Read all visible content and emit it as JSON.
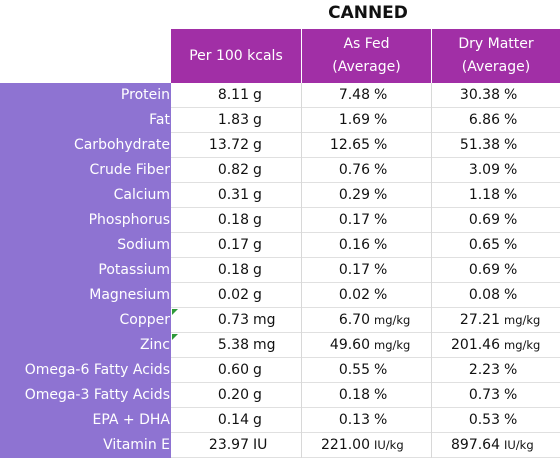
{
  "title": "CANNED",
  "headers": [
    {
      "line1": "Per 100 kcals",
      "line2": ""
    },
    {
      "line1": "As Fed",
      "line2": "(Average)"
    },
    {
      "line1": "Dry Matter",
      "line2": "(Average)"
    }
  ],
  "rows": [
    {
      "label": "Protein",
      "per100": {
        "n": "8.11",
        "u": "g"
      },
      "asfed": {
        "n": "7.48",
        "u": "%"
      },
      "dry": {
        "n": "30.38",
        "u": "%"
      }
    },
    {
      "label": "Fat",
      "per100": {
        "n": "1.83",
        "u": "g"
      },
      "asfed": {
        "n": "1.69",
        "u": "%"
      },
      "dry": {
        "n": "6.86",
        "u": "%"
      }
    },
    {
      "label": "Carbohydrate",
      "per100": {
        "n": "13.72",
        "u": "g"
      },
      "asfed": {
        "n": "12.65",
        "u": "%"
      },
      "dry": {
        "n": "51.38",
        "u": "%"
      }
    },
    {
      "label": "Crude Fiber",
      "per100": {
        "n": "0.82",
        "u": "g"
      },
      "asfed": {
        "n": "0.76",
        "u": "%"
      },
      "dry": {
        "n": "3.09",
        "u": "%"
      }
    },
    {
      "label": "Calcium",
      "per100": {
        "n": "0.31",
        "u": "g"
      },
      "asfed": {
        "n": "0.29",
        "u": "%"
      },
      "dry": {
        "n": "1.18",
        "u": "%"
      }
    },
    {
      "label": "Phosphorus",
      "per100": {
        "n": "0.18",
        "u": "g"
      },
      "asfed": {
        "n": "0.17",
        "u": "%"
      },
      "dry": {
        "n": "0.69",
        "u": "%"
      }
    },
    {
      "label": "Sodium",
      "per100": {
        "n": "0.17",
        "u": "g"
      },
      "asfed": {
        "n": "0.16",
        "u": "%"
      },
      "dry": {
        "n": "0.65",
        "u": "%"
      }
    },
    {
      "label": "Potassium",
      "per100": {
        "n": "0.18",
        "u": "g"
      },
      "asfed": {
        "n": "0.17",
        "u": "%"
      },
      "dry": {
        "n": "0.69",
        "u": "%"
      }
    },
    {
      "label": "Magnesium",
      "per100": {
        "n": "0.02",
        "u": "g"
      },
      "asfed": {
        "n": "0.02",
        "u": "%"
      },
      "dry": {
        "n": "0.08",
        "u": "%"
      }
    },
    {
      "label": "Copper",
      "per100": {
        "n": "0.73",
        "u": "mg"
      },
      "asfed": {
        "n": "6.70",
        "u": "mg/kg"
      },
      "dry": {
        "n": "27.21",
        "u": "mg/kg"
      },
      "flag": true
    },
    {
      "label": "Zinc",
      "per100": {
        "n": "5.38",
        "u": "mg"
      },
      "asfed": {
        "n": "49.60",
        "u": "mg/kg"
      },
      "dry": {
        "n": "201.46",
        "u": "mg/kg"
      },
      "flag": true
    },
    {
      "label": "Omega-6 Fatty Acids",
      "per100": {
        "n": "0.60",
        "u": "g"
      },
      "asfed": {
        "n": "0.55",
        "u": "%"
      },
      "dry": {
        "n": "2.23",
        "u": "%"
      }
    },
    {
      "label": "Omega-3 Fatty Acids",
      "per100": {
        "n": "0.20",
        "u": "g"
      },
      "asfed": {
        "n": "0.18",
        "u": "%"
      },
      "dry": {
        "n": "0.73",
        "u": "%"
      }
    },
    {
      "label": "EPA + DHA",
      "per100": {
        "n": "0.14",
        "u": "g"
      },
      "asfed": {
        "n": "0.13",
        "u": "%"
      },
      "dry": {
        "n": "0.53",
        "u": "%"
      }
    },
    {
      "label": "Vitamin E",
      "per100": {
        "n": "23.97",
        "u": "IU"
      },
      "asfed": {
        "n": "221.00",
        "u": "IU/kg"
      },
      "dry": {
        "n": "897.64",
        "u": "IU/kg"
      }
    }
  ],
  "colors": {
    "header": "#a12fa6",
    "sidebar": "#8e73d2",
    "flag": "#2f9a3a"
  }
}
